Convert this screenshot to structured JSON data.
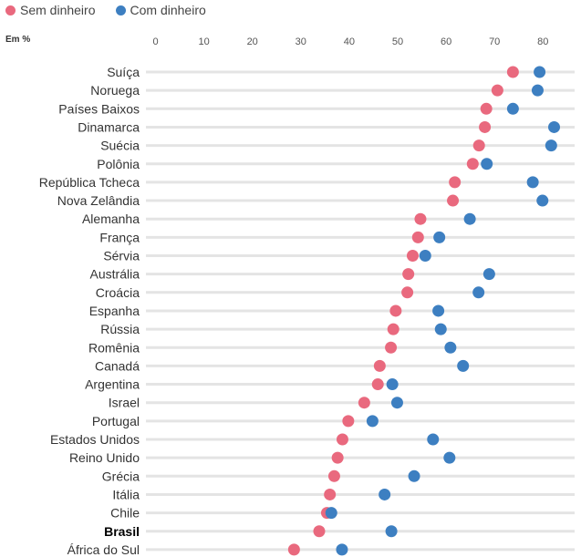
{
  "legend": {
    "sem_label": "Sem dinheiro",
    "com_label": "Com dinheiro"
  },
  "unit_label": "Em %",
  "colors": {
    "sem": "#e9697e",
    "com": "#3d7fc1",
    "grid": "#e4e4e4"
  },
  "chart_data": {
    "type": "scatter",
    "title": "",
    "xlabel": "",
    "ylabel": "",
    "xlim": [
      0,
      85
    ],
    "xticks": [
      0,
      10,
      20,
      30,
      40,
      50,
      60,
      70,
      80
    ],
    "highlight": "Brasil",
    "categories": [
      "Suíça",
      "Noruega",
      "Países Baixos",
      "Dinamarca",
      "Suécia",
      "Polônia",
      "República Tcheca",
      "Nova Zelândia",
      "Alemanha",
      "França",
      "Sérvia",
      "Austrália",
      "Croácia",
      "Espanha",
      "Rússia",
      "Romênia",
      "Canadá",
      "Argentina",
      "Israel",
      "Portugal",
      "Estados Unidos",
      "Reino Unido",
      "Grécia",
      "Itália",
      "Chile",
      "Brasil",
      "África do Sul"
    ],
    "series": [
      {
        "name": "Sem dinheiro",
        "values": [
          73.8,
          70.6,
          68.3,
          68.0,
          66.8,
          65.5,
          61.8,
          61.4,
          54.7,
          54.2,
          53.1,
          52.2,
          52.0,
          49.6,
          49.1,
          48.6,
          46.3,
          45.9,
          43.1,
          39.8,
          38.6,
          37.6,
          36.9,
          36.0,
          35.4,
          33.8,
          28.6
        ]
      },
      {
        "name": "Com dinheiro",
        "values": [
          79.3,
          78.9,
          73.8,
          82.3,
          81.7,
          68.4,
          77.9,
          79.9,
          64.9,
          58.6,
          55.7,
          68.9,
          66.7,
          58.4,
          58.9,
          60.9,
          63.5,
          48.9,
          49.9,
          44.8,
          57.3,
          60.7,
          53.4,
          47.3,
          36.3,
          48.7,
          38.5
        ]
      }
    ]
  }
}
